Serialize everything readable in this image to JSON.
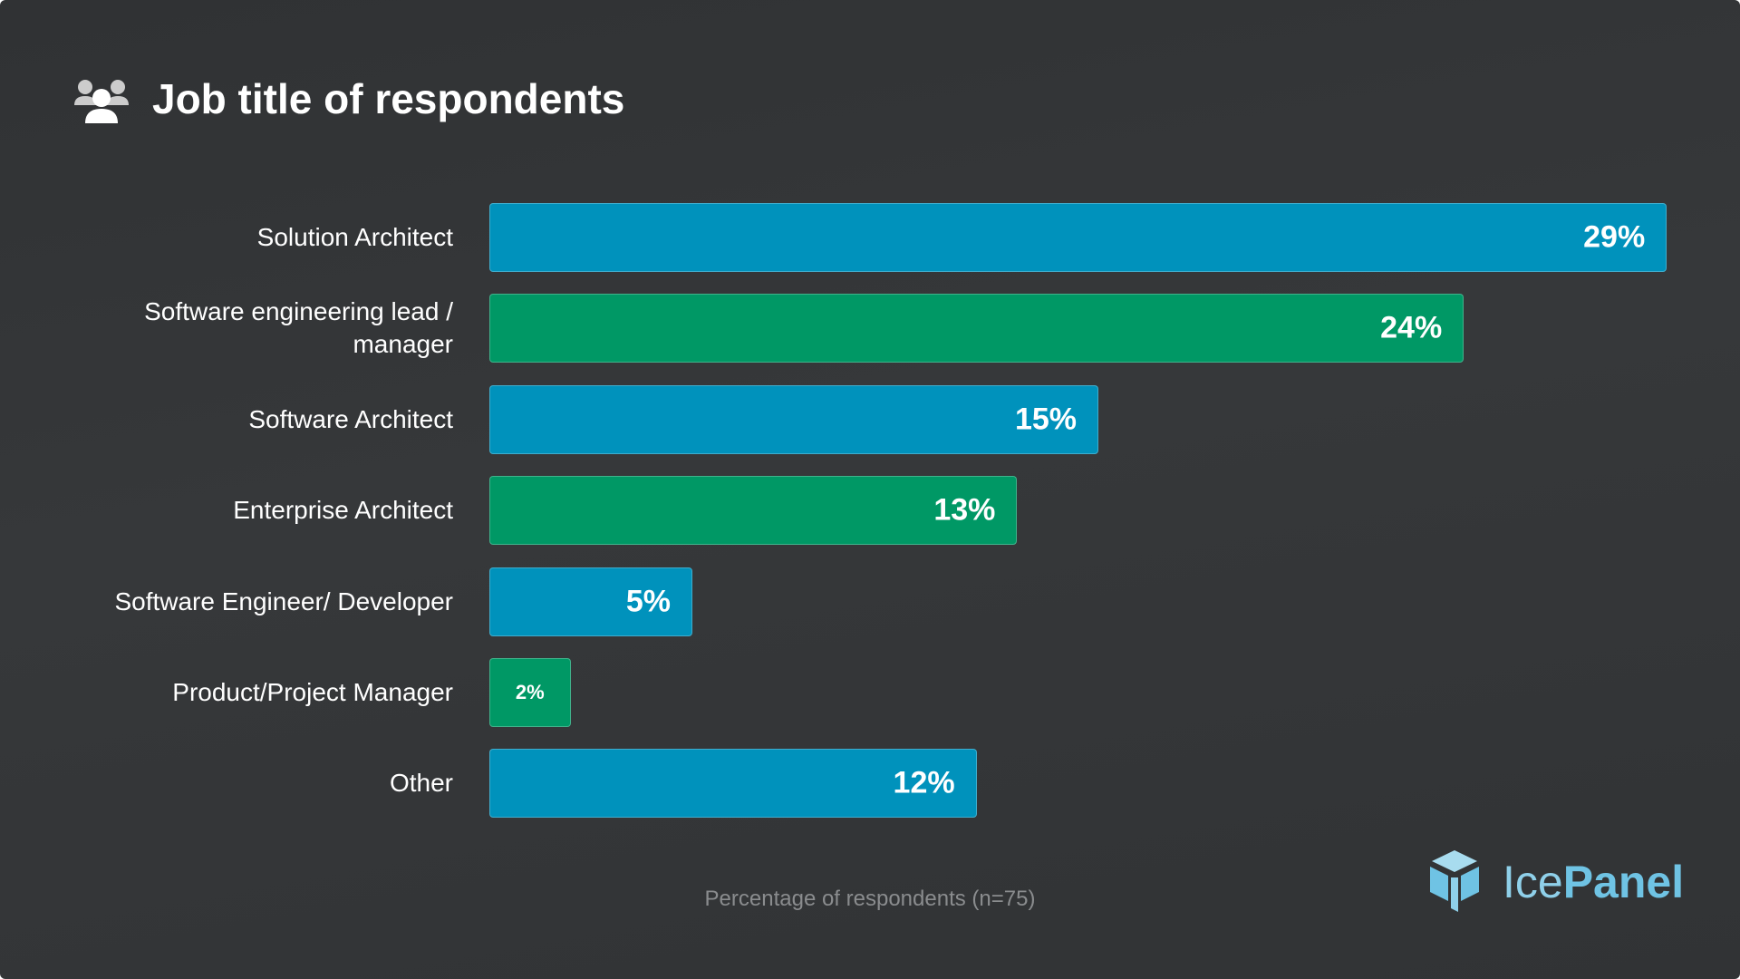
{
  "chart_data": {
    "type": "bar",
    "orientation": "horizontal",
    "title": "Job title of respondents",
    "x_label": "Percentage of respondents (n=75)",
    "categories": [
      "Solution Architect",
      "Software engineering lead / manager",
      "Software Architect",
      "Enterprise Architect",
      "Software Engineer/ Developer",
      "Product/Project Manager",
      "Other"
    ],
    "values": [
      29,
      24,
      15,
      13,
      5,
      2,
      12
    ],
    "value_labels": [
      "29%",
      "24%",
      "15%",
      "13%",
      "5%",
      "2%",
      "12%"
    ],
    "colors": [
      "#0092bc",
      "#009865",
      "#0092bc",
      "#009865",
      "#0092bc",
      "#009865",
      "#0092bc"
    ]
  },
  "logo": {
    "light": "Ice",
    "bold": "Panel"
  }
}
